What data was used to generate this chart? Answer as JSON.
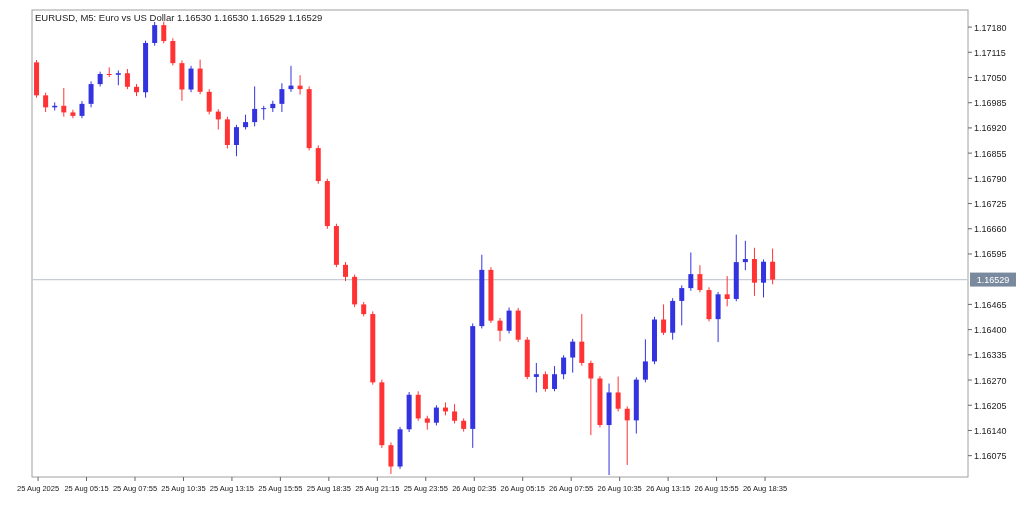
{
  "chart_data": {
    "type": "candlestick",
    "title": "EURUSD, M5:  Euro vs US Dollar  1.16530 1.16530 1.16529 1.16529",
    "x": [
      "2025-08-25T02:30",
      "2025-08-25T03:00",
      "2025-08-25T03:30",
      "2025-08-25T04:00",
      "2025-08-25T04:30",
      "2025-08-25T05:00",
      "2025-08-25T05:30",
      "2025-08-25T06:00",
      "2025-08-25T06:30",
      "2025-08-25T07:00",
      "2025-08-25T07:30",
      "2025-08-25T08:00",
      "2025-08-25T08:30",
      "2025-08-25T09:00",
      "2025-08-25T09:30",
      "2025-08-25T10:00",
      "2025-08-25T10:30",
      "2025-08-25T11:00",
      "2025-08-25T11:30",
      "2025-08-25T12:00",
      "2025-08-25T12:30",
      "2025-08-25T13:00",
      "2025-08-25T13:30",
      "2025-08-25T14:00",
      "2025-08-25T14:30",
      "2025-08-25T15:00",
      "2025-08-25T15:30",
      "2025-08-25T16:00",
      "2025-08-25T16:30",
      "2025-08-25T17:00",
      "2025-08-25T17:30",
      "2025-08-25T18:00",
      "2025-08-25T18:30",
      "2025-08-25T19:00",
      "2025-08-25T19:30",
      "2025-08-25T20:00",
      "2025-08-25T20:30",
      "2025-08-25T21:00",
      "2025-08-25T21:30",
      "2025-08-25T22:00",
      "2025-08-25T22:30",
      "2025-08-25T23:00",
      "2025-08-25T23:30",
      "2025-08-26T00:00",
      "2025-08-26T00:30",
      "2025-08-26T01:00",
      "2025-08-26T01:30",
      "2025-08-26T02:00",
      "2025-08-26T02:30",
      "2025-08-26T03:00",
      "2025-08-26T03:30",
      "2025-08-26T04:00",
      "2025-08-26T04:30",
      "2025-08-26T05:00",
      "2025-08-26T05:30",
      "2025-08-26T06:00",
      "2025-08-26T06:30",
      "2025-08-26T07:00",
      "2025-08-26T07:30",
      "2025-08-26T08:00",
      "2025-08-26T08:30",
      "2025-08-26T09:00",
      "2025-08-26T09:30",
      "2025-08-26T10:00",
      "2025-08-26T10:30",
      "2025-08-26T11:00",
      "2025-08-26T11:30",
      "2025-08-26T12:00",
      "2025-08-26T12:30",
      "2025-08-26T13:00",
      "2025-08-26T13:30",
      "2025-08-26T14:00",
      "2025-08-26T14:30",
      "2025-08-26T15:00",
      "2025-08-26T15:30",
      "2025-08-26T16:00",
      "2025-08-26T16:30",
      "2025-08-26T17:00",
      "2025-08-26T17:30",
      "2025-08-26T18:00",
      "2025-08-26T18:30",
      "2025-08-26T19:00"
    ],
    "ohlc": [
      [
        1.17089,
        1.17095,
        1.16998,
        1.17004
      ],
      [
        1.17004,
        1.17011,
        1.16961,
        1.16973
      ],
      [
        1.16973,
        1.16986,
        1.16965,
        1.16977
      ],
      [
        1.16977,
        1.17023,
        1.16949,
        1.1696
      ],
      [
        1.1696,
        1.16967,
        1.16945,
        1.16951
      ],
      [
        1.16951,
        1.16989,
        1.16945,
        1.16982
      ],
      [
        1.16982,
        1.1704,
        1.16973,
        1.17033
      ],
      [
        1.17033,
        1.17065,
        1.17027,
        1.17059
      ],
      [
        1.17059,
        1.17076,
        1.17051,
        1.17057
      ],
      [
        1.17057,
        1.17068,
        1.1703,
        1.17061
      ],
      [
        1.17061,
        1.17072,
        1.1702,
        1.17026
      ],
      [
        1.17026,
        1.17033,
        1.17002,
        1.17012
      ],
      [
        1.17012,
        1.17145,
        1.16998,
        1.17139
      ],
      [
        1.17139,
        1.17193,
        1.17132,
        1.17185
      ],
      [
        1.17185,
        1.17194,
        1.17138,
        1.17144
      ],
      [
        1.17144,
        1.17151,
        1.17081,
        1.17087
      ],
      [
        1.17087,
        1.17094,
        1.1699,
        1.17019
      ],
      [
        1.17019,
        1.1708,
        1.17012,
        1.17073
      ],
      [
        1.17073,
        1.17096,
        1.17007,
        1.17013
      ],
      [
        1.17013,
        1.1702,
        1.16955,
        1.16962
      ],
      [
        1.16962,
        1.16968,
        1.16916,
        1.16942
      ],
      [
        1.16942,
        1.16949,
        1.16867,
        1.16876
      ],
      [
        1.16876,
        1.16928,
        1.16847,
        1.16922
      ],
      [
        1.16922,
        1.16954,
        1.16916,
        1.16935
      ],
      [
        1.16935,
        1.17027,
        1.16924,
        1.16969
      ],
      [
        1.16969,
        1.16977,
        1.16941,
        1.16971
      ],
      [
        1.16971,
        1.1699,
        1.16961,
        1.16982
      ],
      [
        1.16982,
        1.17035,
        1.16961,
        1.1702
      ],
      [
        1.1702,
        1.1708,
        1.17013,
        1.17029
      ],
      [
        1.17029,
        1.17056,
        1.17006,
        1.1702
      ],
      [
        1.1702,
        1.17027,
        1.16862,
        1.16868
      ],
      [
        1.16868,
        1.16875,
        1.16776,
        1.16783
      ],
      [
        1.16783,
        1.16789,
        1.1666,
        1.16667
      ],
      [
        1.16667,
        1.16673,
        1.16561,
        1.16567
      ],
      [
        1.16567,
        1.16574,
        1.16525,
        1.16536
      ],
      [
        1.16536,
        1.16542,
        1.16458,
        1.16465
      ],
      [
        1.16465,
        1.16471,
        1.16434,
        1.1644
      ],
      [
        1.1644,
        1.16447,
        1.16258,
        1.16264
      ],
      [
        1.16264,
        1.16271,
        1.16095,
        1.16102
      ],
      [
        1.16102,
        1.16109,
        1.16028,
        1.16047
      ],
      [
        1.16047,
        1.16149,
        1.16041,
        1.16143
      ],
      [
        1.16143,
        1.16239,
        1.16136,
        1.16232
      ],
      [
        1.16232,
        1.16241,
        1.16165,
        1.16171
      ],
      [
        1.16171,
        1.16178,
        1.16142,
        1.1616
      ],
      [
        1.1616,
        1.16205,
        1.16153,
        1.16199
      ],
      [
        1.16199,
        1.16212,
        1.16179,
        1.16189
      ],
      [
        1.16189,
        1.16208,
        1.16158,
        1.16165
      ],
      [
        1.16165,
        1.16171,
        1.16137,
        1.16144
      ],
      [
        1.16144,
        1.16416,
        1.16095,
        1.16409
      ],
      [
        1.16409,
        1.16593,
        1.16403,
        1.16554
      ],
      [
        1.16554,
        1.16561,
        1.16417,
        1.16423
      ],
      [
        1.16423,
        1.1643,
        1.1637,
        1.16397
      ],
      [
        1.16397,
        1.16457,
        1.1639,
        1.16449
      ],
      [
        1.16449,
        1.16456,
        1.16368,
        1.16374
      ],
      [
        1.16374,
        1.16381,
        1.16272,
        1.16278
      ],
      [
        1.16278,
        1.16314,
        1.16238,
        1.16285
      ],
      [
        1.16285,
        1.16292,
        1.1624,
        1.16247
      ],
      [
        1.16247,
        1.16306,
        1.16241,
        1.16285
      ],
      [
        1.16285,
        1.16334,
        1.16272,
        1.16328
      ],
      [
        1.16328,
        1.16376,
        1.16289,
        1.16369
      ],
      [
        1.16369,
        1.1644,
        1.16307,
        1.16314
      ],
      [
        1.16314,
        1.1632,
        1.16128,
        1.16274
      ],
      [
        1.16274,
        1.1628,
        1.16148,
        1.16154
      ],
      [
        1.16154,
        1.16261,
        1.16025,
        1.16238
      ],
      [
        1.16238,
        1.16279,
        1.16189,
        1.16196
      ],
      [
        1.16196,
        1.16202,
        1.16051,
        1.16166
      ],
      [
        1.16166,
        1.16277,
        1.16132,
        1.16271
      ],
      [
        1.16271,
        1.16375,
        1.16264,
        1.16318
      ],
      [
        1.16318,
        1.16433,
        1.16311,
        1.16426
      ],
      [
        1.16426,
        1.16465,
        1.16386,
        1.16392
      ],
      [
        1.16392,
        1.16481,
        1.16374,
        1.16474
      ],
      [
        1.16474,
        1.16514,
        1.16411,
        1.16507
      ],
      [
        1.16507,
        1.16599,
        1.165,
        1.16543
      ],
      [
        1.16543,
        1.16566,
        1.16496,
        1.16502
      ],
      [
        1.16502,
        1.16509,
        1.16421,
        1.16427
      ],
      [
        1.16427,
        1.16497,
        1.16368,
        1.16491
      ],
      [
        1.16491,
        1.16538,
        1.1646,
        1.16479
      ],
      [
        1.16479,
        1.16645,
        1.16473,
        1.16574
      ],
      [
        1.16574,
        1.16629,
        1.16553,
        1.16582
      ],
      [
        1.16582,
        1.16611,
        1.16487,
        1.16521
      ],
      [
        1.16521,
        1.16581,
        1.16483,
        1.16575
      ],
      [
        1.16575,
        1.16609,
        1.16517,
        1.16529
      ]
    ],
    "colors": [
      "#ff3333",
      "#ff3333",
      "#3333e0",
      "#ff3333",
      "#ff3333",
      "#3333e0",
      "#3333e0",
      "#3333e0",
      "#ff3333",
      "#3333e0",
      "#ff3333",
      "#ff3333",
      "#3333e0",
      "#3333e0",
      "#ff3333",
      "#ff3333",
      "#ff3333",
      "#3333e0",
      "#ff3333",
      "#ff3333",
      "#ff3333",
      "#ff3333",
      "#3333e0",
      "#3333e0",
      "#3333e0",
      "#3333e0",
      "#3333e0",
      "#3333e0",
      "#3333e0",
      "#ff3333",
      "#ff3333",
      "#ff3333",
      "#ff3333",
      "#ff3333",
      "#ff3333",
      "#ff3333",
      "#ff3333",
      "#ff3333",
      "#ff3333",
      "#ff3333",
      "#3333e0",
      "#3333e0",
      "#ff3333",
      "#ff3333",
      "#3333e0",
      "#ff3333",
      "#ff3333",
      "#ff3333",
      "#3333e0",
      "#3333e0",
      "#ff3333",
      "#ff3333",
      "#3333e0",
      "#ff3333",
      "#ff3333",
      "#3333e0",
      "#ff3333",
      "#3333e0",
      "#3333e0",
      "#3333e0",
      "#ff3333",
      "#ff3333",
      "#ff3333",
      "#3333e0",
      "#ff3333",
      "#ff3333",
      "#3333e0",
      "#3333e0",
      "#3333e0",
      "#ff3333",
      "#3333e0",
      "#3333e0",
      "#3333e0",
      "#ff3333",
      "#ff3333",
      "#3333e0",
      "#ff3333",
      "#3333e0",
      "#3333e0",
      "#ff3333",
      "#3333e0",
      "#ff3333"
    ],
    "xlim": [
      "2025-08-25T02:15",
      "2025-08-27T05:45"
    ],
    "xticks": [
      {
        "value": "2025-08-25T02:35",
        "label": "25 Aug 2025"
      },
      {
        "value": "2025-08-25T05:15",
        "label": "25 Aug 05:15"
      },
      {
        "value": "2025-08-25T07:55",
        "label": "25 Aug 07:55"
      },
      {
        "value": "2025-08-25T10:35",
        "label": "25 Aug 10:35"
      },
      {
        "value": "2025-08-25T13:15",
        "label": "25 Aug 13:15"
      },
      {
        "value": "2025-08-25T15:55",
        "label": "25 Aug 15:55"
      },
      {
        "value": "2025-08-25T18:35",
        "label": "25 Aug 18:35"
      },
      {
        "value": "2025-08-25T21:15",
        "label": "25 Aug 21:15"
      },
      {
        "value": "2025-08-25T23:55",
        "label": "25 Aug 23:55"
      },
      {
        "value": "2025-08-26T02:35",
        "label": "26 Aug 02:35"
      },
      {
        "value": "2025-08-26T05:15",
        "label": "26 Aug 05:15"
      },
      {
        "value": "2025-08-26T07:55",
        "label": "26 Aug 07:55"
      },
      {
        "value": "2025-08-26T10:35",
        "label": "26 Aug 10:35"
      },
      {
        "value": "2025-08-26T13:15",
        "label": "26 Aug 13:15"
      },
      {
        "value": "2025-08-26T15:55",
        "label": "26 Aug 15:55"
      },
      {
        "value": "2025-08-26T18:35",
        "label": "26 Aug 18:35"
      }
    ],
    "ylim": [
      1.1602,
      1.17224
    ],
    "yticks": [
      {
        "value": 1.1718,
        "label": "1.17180"
      },
      1.17115,
      {
        "value": 1.1705,
        "label": "1.17050"
      },
      1.16985,
      {
        "value": 1.1692,
        "label": "1.16920"
      },
      1.16855,
      {
        "value": 1.1679,
        "label": "1.16790"
      },
      1.16725,
      {
        "value": 1.1666,
        "label": "1.16660"
      },
      1.16595,
      1.16465,
      {
        "value": 1.164,
        "label": "1.16400"
      },
      1.16335,
      {
        "value": 1.1627,
        "label": "1.16270"
      },
      1.16205,
      {
        "value": 1.1614,
        "label": "1.16140"
      },
      1.16075
    ],
    "ref_lines": [
      {
        "axis": "y",
        "value": 1.16529,
        "label": "1.16529",
        "color": "#c8ccd4"
      }
    ]
  }
}
